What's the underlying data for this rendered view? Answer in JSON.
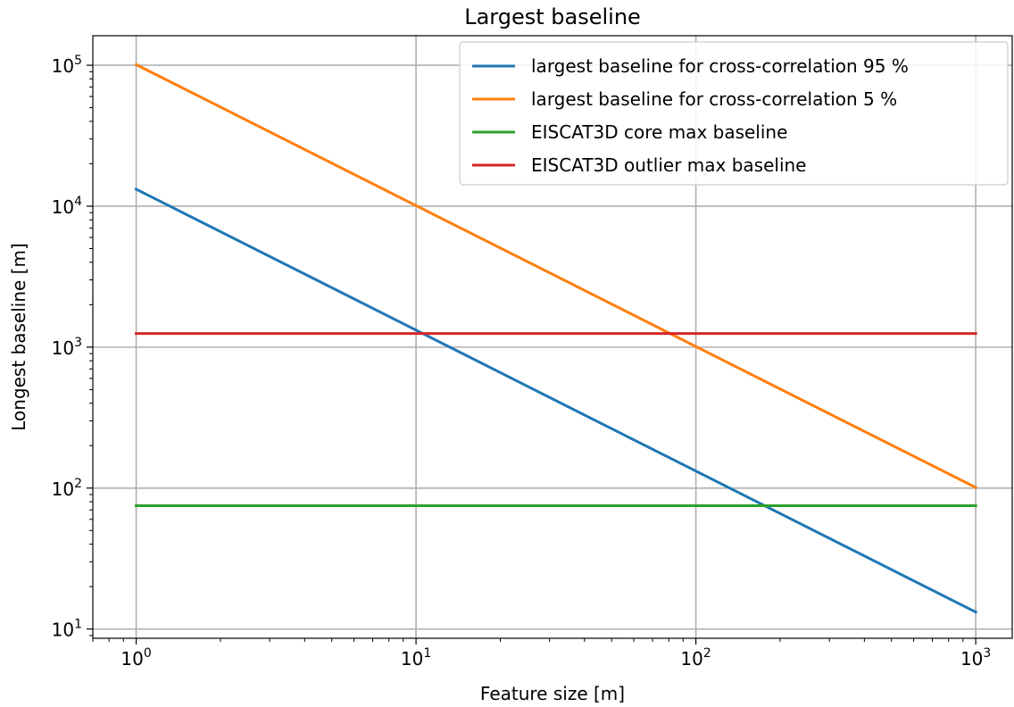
{
  "chart_data": {
    "type": "line",
    "title": "Largest baseline",
    "xlabel": "Feature size [m]",
    "ylabel": "Longest baseline [m]",
    "xscale": "log",
    "yscale": "log",
    "xlim": [
      0.7,
      1350
    ],
    "ylim": [
      8.6,
      162000
    ],
    "xticks": [
      {
        "value": 1,
        "base": "10",
        "exp": "0"
      },
      {
        "value": 10,
        "base": "10",
        "exp": "1"
      },
      {
        "value": 100,
        "base": "10",
        "exp": "2"
      },
      {
        "value": 1000,
        "base": "10",
        "exp": "3"
      }
    ],
    "yticks": [
      {
        "value": 10,
        "base": "10",
        "exp": "1"
      },
      {
        "value": 100,
        "base": "10",
        "exp": "2"
      },
      {
        "value": 1000,
        "base": "10",
        "exp": "3"
      },
      {
        "value": 10000,
        "base": "10",
        "exp": "4"
      },
      {
        "value": 100000,
        "base": "10",
        "exp": "5"
      }
    ],
    "grid": true,
    "legend_position": "top-right",
    "series": [
      {
        "name": "largest baseline for cross-correlation 95 %",
        "color": "#1f77b4",
        "x": [
          1,
          1000
        ],
        "y": [
          13200,
          13.2
        ]
      },
      {
        "name": "largest baseline for cross-correlation 5 %",
        "color": "#ff7f0e",
        "x": [
          1,
          1000
        ],
        "y": [
          101000,
          101
        ]
      },
      {
        "name": "EISCAT3D core max baseline",
        "color": "#2ca02c",
        "x": [
          1,
          1000
        ],
        "y": [
          75,
          75
        ]
      },
      {
        "name": "EISCAT3D outlier max baseline",
        "color": "#d62728",
        "x": [
          1,
          1000
        ],
        "y": [
          1250,
          1250
        ]
      }
    ]
  }
}
